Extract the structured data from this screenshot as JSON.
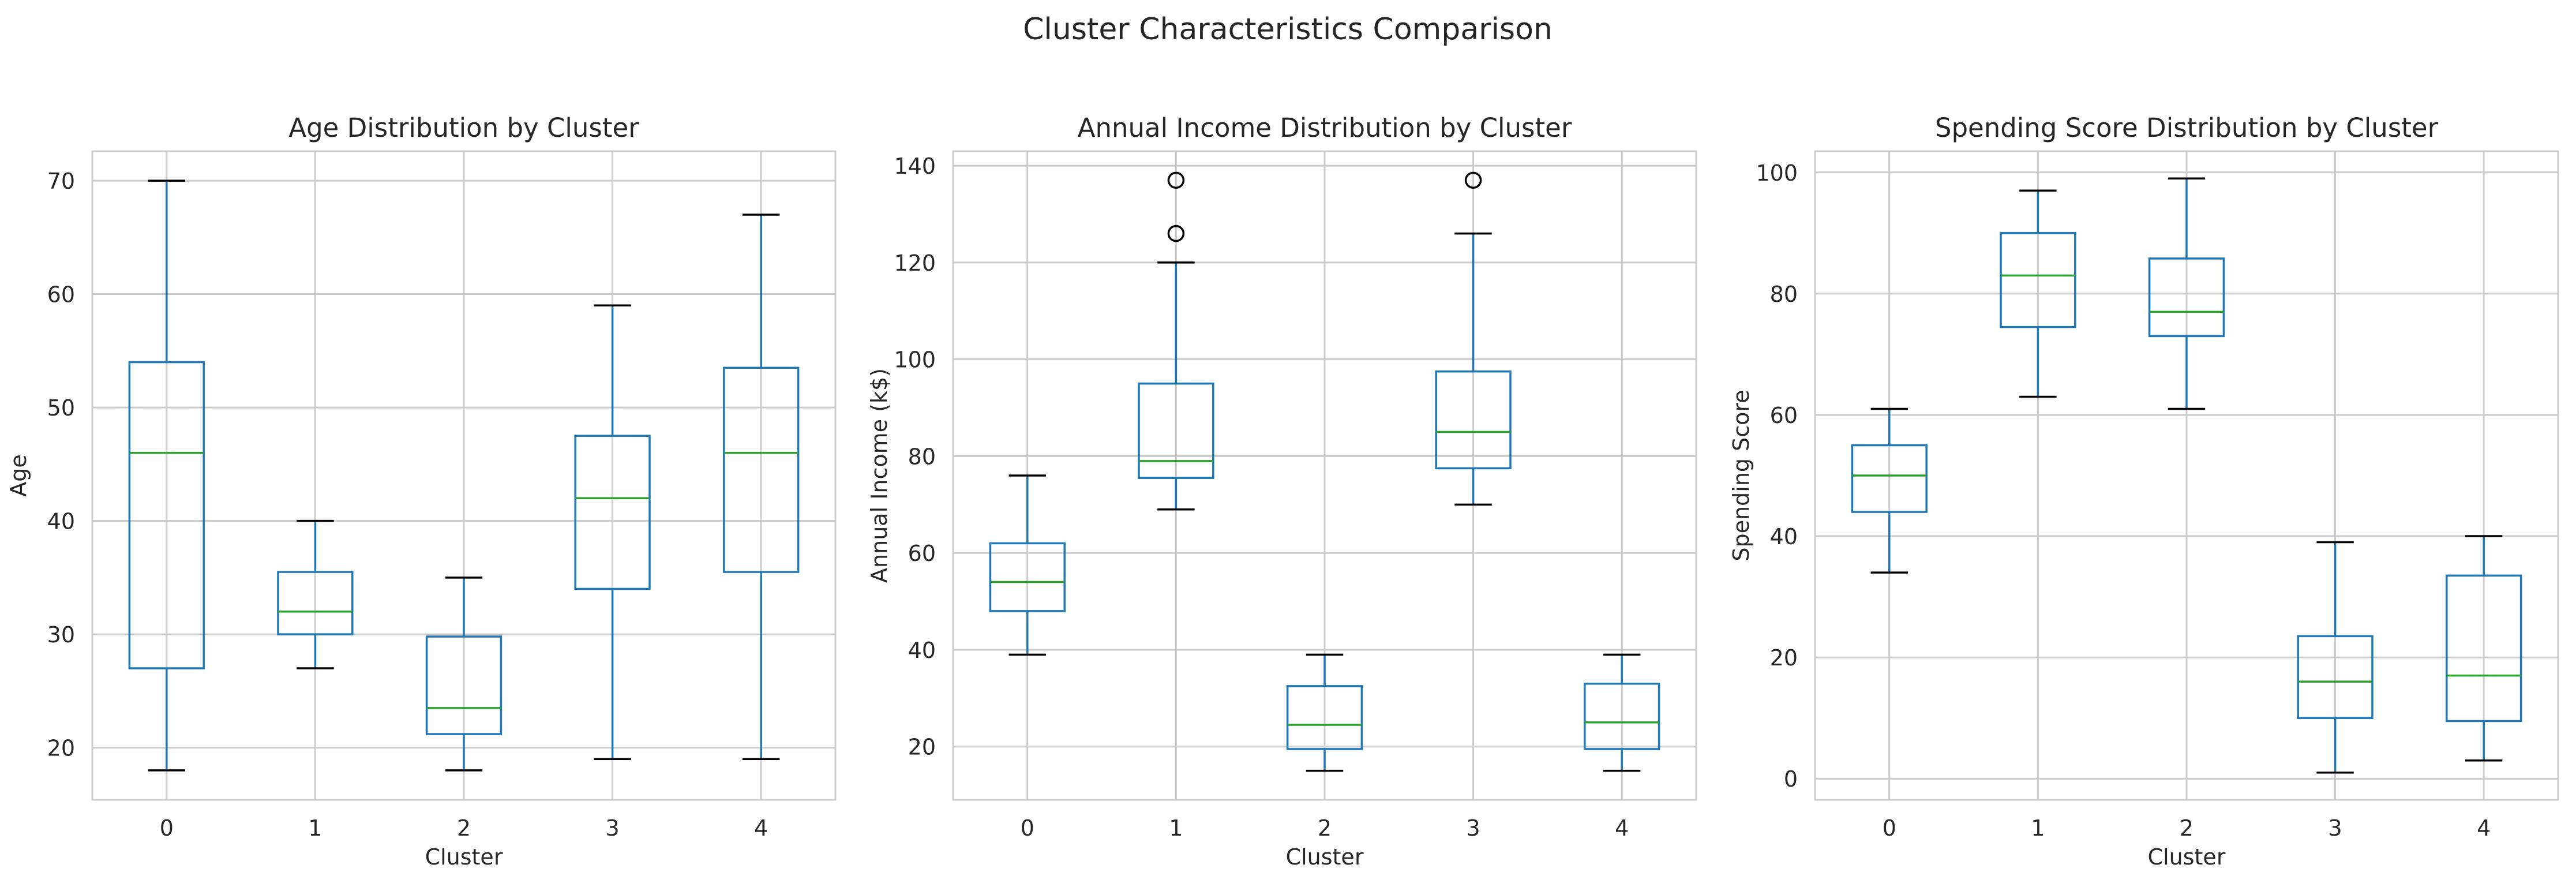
{
  "figure": {
    "title": "Cluster Characteristics Comparison"
  },
  "style": {
    "box_color": "#1f77b4",
    "median_color": "#2ca02c",
    "whisker_cap_color": "#000000",
    "grid_color": "#cccccc",
    "axes_edge_color": "#cccccc",
    "flier_edge_color": "#000000"
  },
  "chart_data": [
    {
      "type": "box",
      "title": "Age Distribution by Cluster",
      "xlabel": "Cluster",
      "ylabel": "Age",
      "categories": [
        "0",
        "1",
        "2",
        "3",
        "4"
      ],
      "ylim": [
        15.4,
        72.6
      ],
      "yticks": [
        20,
        30,
        40,
        50,
        60,
        70
      ],
      "grid": true,
      "boxes": [
        {
          "cluster": "0",
          "min": 18,
          "q1": 27,
          "median": 46,
          "q3": 54,
          "max": 70,
          "outliers": []
        },
        {
          "cluster": "1",
          "min": 27,
          "q1": 30,
          "median": 32,
          "q3": 35.5,
          "max": 40,
          "outliers": []
        },
        {
          "cluster": "2",
          "min": 18,
          "q1": 21.2,
          "median": 23.5,
          "q3": 29.8,
          "max": 35,
          "outliers": []
        },
        {
          "cluster": "3",
          "min": 19,
          "q1": 34,
          "median": 42,
          "q3": 47.5,
          "max": 59,
          "outliers": []
        },
        {
          "cluster": "4",
          "min": 19,
          "q1": 35.5,
          "median": 46,
          "q3": 53.5,
          "max": 67,
          "outliers": []
        }
      ]
    },
    {
      "type": "box",
      "title": "Annual Income Distribution by Cluster",
      "xlabel": "Cluster",
      "ylabel": "Annual Income (k$)",
      "categories": [
        "0",
        "1",
        "2",
        "3",
        "4"
      ],
      "ylim": [
        9,
        143
      ],
      "yticks": [
        20,
        40,
        60,
        80,
        100,
        120,
        140
      ],
      "grid": true,
      "boxes": [
        {
          "cluster": "0",
          "min": 39,
          "q1": 48,
          "median": 54,
          "q3": 62,
          "max": 76,
          "outliers": []
        },
        {
          "cluster": "1",
          "min": 69,
          "q1": 75.5,
          "median": 79,
          "q3": 95,
          "max": 120,
          "outliers": [
            126,
            137
          ]
        },
        {
          "cluster": "2",
          "min": 15,
          "q1": 19.5,
          "median": 24.5,
          "q3": 32.5,
          "max": 39,
          "outliers": []
        },
        {
          "cluster": "3",
          "min": 70,
          "q1": 77.5,
          "median": 85,
          "q3": 97.5,
          "max": 126,
          "outliers": [
            137
          ]
        },
        {
          "cluster": "4",
          "min": 15,
          "q1": 19.5,
          "median": 25,
          "q3": 33,
          "max": 39,
          "outliers": []
        }
      ]
    },
    {
      "type": "box",
      "title": "Spending Score Distribution by Cluster",
      "xlabel": "Cluster",
      "ylabel": "Spending Score",
      "categories": [
        "0",
        "1",
        "2",
        "3",
        "4"
      ],
      "ylim": [
        -3.5,
        103.5
      ],
      "yticks": [
        0,
        20,
        40,
        60,
        80,
        100
      ],
      "grid": true,
      "boxes": [
        {
          "cluster": "0",
          "min": 34,
          "q1": 44,
          "median": 50,
          "q3": 55,
          "max": 61,
          "outliers": []
        },
        {
          "cluster": "1",
          "min": 63,
          "q1": 74.5,
          "median": 83,
          "q3": 90,
          "max": 97,
          "outliers": []
        },
        {
          "cluster": "2",
          "min": 61,
          "q1": 73,
          "median": 77,
          "q3": 85.8,
          "max": 99,
          "outliers": []
        },
        {
          "cluster": "3",
          "min": 1,
          "q1": 10,
          "median": 16,
          "q3": 23.5,
          "max": 39,
          "outliers": []
        },
        {
          "cluster": "4",
          "min": 3,
          "q1": 9.5,
          "median": 17,
          "q3": 33.5,
          "max": 40,
          "outliers": []
        }
      ]
    }
  ]
}
